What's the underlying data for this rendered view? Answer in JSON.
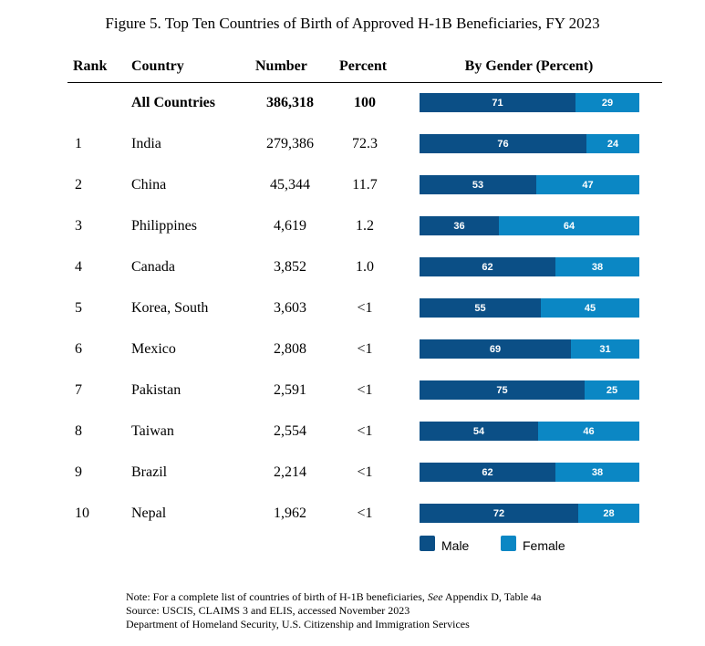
{
  "colors": {
    "male": "#0b4f86",
    "female": "#0b87c4"
  },
  "chart_data": {
    "type": "table",
    "title": "Figure 5. Top Ten Countries of Birth of Approved H-1B Beneficiaries, FY 2023",
    "columns": [
      "Rank",
      "Country",
      "Number",
      "Percent",
      "By Gender (Percent)"
    ],
    "series": [
      {
        "name": "Male"
      },
      {
        "name": "Female"
      }
    ],
    "rows": [
      {
        "rank": "",
        "country": "All Countries",
        "number": "386,318",
        "percent": "100",
        "male": 71,
        "female": 29,
        "total": true
      },
      {
        "rank": "1",
        "country": "India",
        "number": "279,386",
        "percent": "72.3",
        "male": 76,
        "female": 24
      },
      {
        "rank": "2",
        "country": "China",
        "number": "45,344",
        "percent": "11.7",
        "male": 53,
        "female": 47
      },
      {
        "rank": "3",
        "country": "Philippines",
        "number": "4,619",
        "percent": "1.2",
        "male": 36,
        "female": 64
      },
      {
        "rank": "4",
        "country": "Canada",
        "number": "3,852",
        "percent": "1.0",
        "male": 62,
        "female": 38
      },
      {
        "rank": "5",
        "country": "Korea, South",
        "number": "3,603",
        "percent": "<1",
        "male": 55,
        "female": 45
      },
      {
        "rank": "6",
        "country": "Mexico",
        "number": "2,808",
        "percent": "<1",
        "male": 69,
        "female": 31
      },
      {
        "rank": "7",
        "country": "Pakistan",
        "number": "2,591",
        "percent": "<1",
        "male": 75,
        "female": 25
      },
      {
        "rank": "8",
        "country": "Taiwan",
        "number": "2,554",
        "percent": "<1",
        "male": 54,
        "female": 46
      },
      {
        "rank": "9",
        "country": "Brazil",
        "number": "2,214",
        "percent": "<1",
        "male": 62,
        "female": 38
      },
      {
        "rank": "10",
        "country": "Nepal",
        "number": "1,962",
        "percent": "<1",
        "male": 72,
        "female": 28
      }
    ],
    "legend": [
      "Male",
      "Female"
    ]
  },
  "notes": {
    "note_prefix": "Note: For a complete list of countries of birth of H-1B beneficiaries, ",
    "note_see": "See",
    "note_suffix": " Appendix D, Table 4a",
    "source": "Source: USCIS, CLAIMS 3 and ELIS, accessed November 2023",
    "department": "Department of Homeland Security, U.S. Citizenship and Immigration Services"
  }
}
